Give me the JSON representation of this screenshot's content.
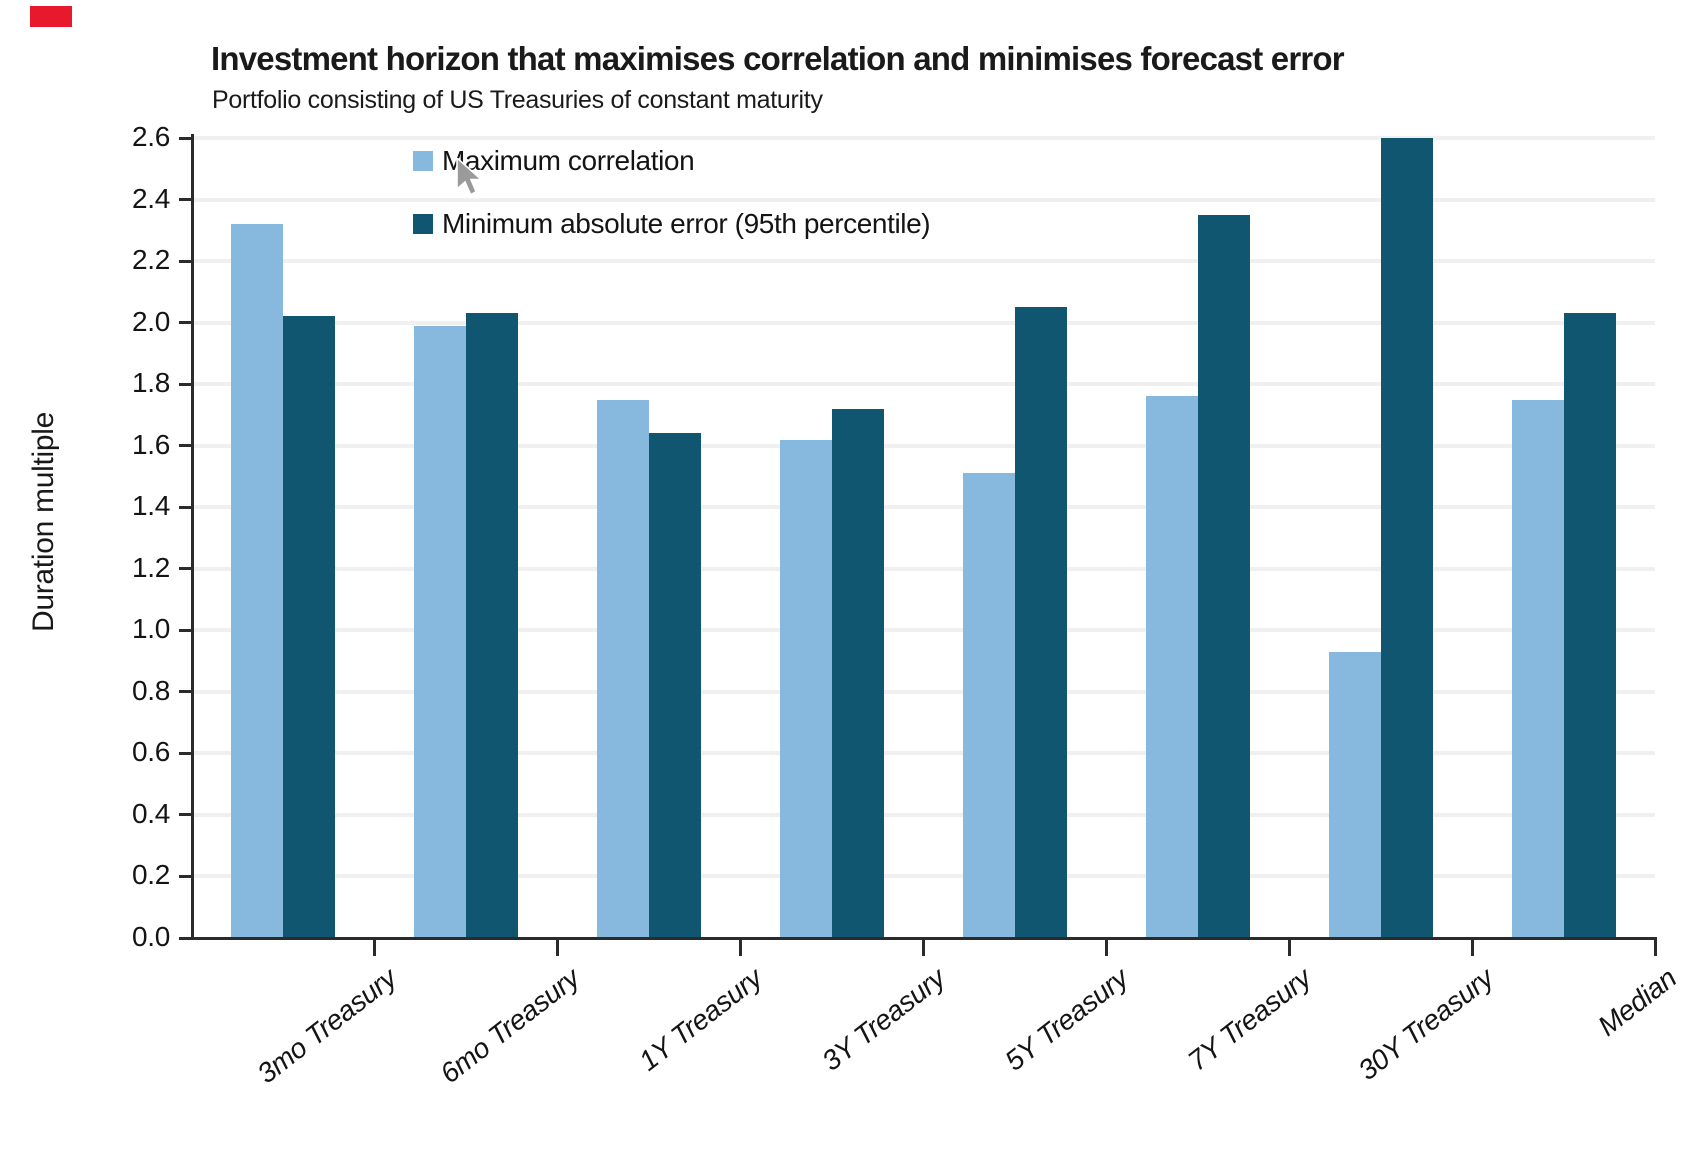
{
  "brand": {
    "mark_color": "#e8182d"
  },
  "header": {
    "title": "Investment horizon that maximises correlation and minimises forecast error",
    "subtitle": "Portfolio consisting of US Treasuries of constant maturity"
  },
  "icons": {
    "mouse_cursor": "arrow-cursor",
    "cursor_color": "#9a9a9a"
  },
  "chart_data": {
    "type": "bar",
    "title": "Investment horizon that maximises correlation and minimises forecast error",
    "subtitle": "Portfolio consisting of US Treasuries of constant maturity",
    "xlabel": "",
    "ylabel": "Duration multiple",
    "ylim": [
      0,
      2.6
    ],
    "ytick_step": 0.2,
    "yticks": [
      "0.0",
      "0.2",
      "0.4",
      "0.6",
      "0.8",
      "1.0",
      "1.2",
      "1.4",
      "1.6",
      "1.8",
      "2.0",
      "2.2",
      "2.4",
      "2.6"
    ],
    "grid": "horizontal",
    "gridline_color": "#f0f0f0",
    "axis_color": "#2b2b2b",
    "legend_position": "upper-left-inside",
    "categories": [
      "3mo Treasury",
      "6mo Treasury",
      "1Y Treasury",
      "3Y Treasury",
      "5Y Treasury",
      "7Y Treasury",
      "30Y Treasury",
      "Median"
    ],
    "series": [
      {
        "name": "Maximum correlation",
        "color": "#86b9dd",
        "values": [
          2.32,
          1.99,
          1.75,
          1.62,
          1.51,
          1.76,
          0.93,
          1.75
        ]
      },
      {
        "name": "Minimum absolute error (95th percentile)",
        "color": "#115670",
        "values": [
          2.02,
          2.03,
          1.64,
          1.72,
          2.05,
          2.35,
          2.6,
          2.03
        ]
      }
    ]
  }
}
